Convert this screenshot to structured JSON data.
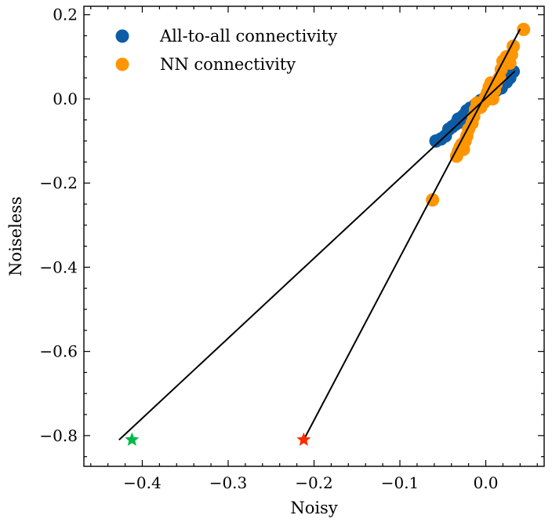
{
  "chart_data": {
    "type": "scatter",
    "title": "",
    "xlabel": "Noisy",
    "ylabel": "Noiseless",
    "xlim": [
      -0.468,
      0.068
    ],
    "ylim": [
      -0.873,
      0.22
    ],
    "xticks": [
      -0.4,
      -0.3,
      -0.2,
      -0.1,
      0.0
    ],
    "xtick_labels": [
      "−0.4",
      "−0.3",
      "−0.2",
      "−0.1",
      "0.0"
    ],
    "yticks": [
      -0.8,
      -0.6,
      -0.4,
      -0.2,
      0.0,
      0.2
    ],
    "ytick_labels": [
      "−0.8",
      "−0.6",
      "−0.4",
      "−0.2",
      "0.0",
      "0.2"
    ],
    "legend_position": "top-left",
    "series": [
      {
        "name": "All-to-all connectivity",
        "color": "#0C5DA5",
        "points": [
          [
            -0.058,
            -0.1
          ],
          [
            -0.052,
            -0.095
          ],
          [
            -0.047,
            -0.088
          ],
          [
            -0.043,
            -0.072
          ],
          [
            -0.039,
            -0.066
          ],
          [
            -0.035,
            -0.06
          ],
          [
            -0.032,
            -0.048
          ],
          [
            -0.03,
            -0.055
          ],
          [
            -0.026,
            -0.04
          ],
          [
            -0.022,
            -0.028
          ],
          [
            -0.018,
            -0.022
          ],
          [
            -0.012,
            -0.014
          ],
          [
            -0.006,
            -0.004
          ],
          [
            0.0,
            0.005
          ],
          [
            0.006,
            0.012
          ],
          [
            0.012,
            0.02
          ],
          [
            0.018,
            0.026
          ],
          [
            0.024,
            0.04
          ],
          [
            0.028,
            0.05
          ],
          [
            0.032,
            0.065
          ]
        ]
      },
      {
        "name": "NN connectivity",
        "color": "#FF9500",
        "points": [
          [
            -0.062,
            -0.24
          ],
          [
            -0.034,
            -0.136
          ],
          [
            -0.032,
            -0.125
          ],
          [
            -0.03,
            -0.115
          ],
          [
            -0.028,
            -0.108
          ],
          [
            -0.026,
            -0.12
          ],
          [
            -0.024,
            -0.1
          ],
          [
            -0.022,
            -0.088
          ],
          [
            -0.02,
            -0.072
          ],
          [
            -0.016,
            -0.058
          ],
          [
            -0.014,
            -0.042
          ],
          [
            -0.012,
            -0.025
          ],
          [
            -0.01,
            -0.01
          ],
          [
            -0.006,
            -0.02
          ],
          [
            -0.002,
            -0.008
          ],
          [
            0.0,
            0.005
          ],
          [
            0.002,
            0.015
          ],
          [
            0.004,
            0.028
          ],
          [
            0.006,
            0.038
          ],
          [
            0.008,
            0.0
          ],
          [
            0.01,
            0.02
          ],
          [
            0.012,
            0.035
          ],
          [
            0.016,
            0.05
          ],
          [
            0.018,
            0.07
          ],
          [
            0.02,
            0.09
          ],
          [
            0.024,
            0.1
          ],
          [
            0.028,
            0.085
          ],
          [
            0.03,
            0.105
          ],
          [
            0.032,
            0.125
          ],
          [
            0.044,
            0.165
          ]
        ]
      }
    ],
    "fit_lines": [
      {
        "name": "all-to-all fit",
        "color": "#000000",
        "from": [
          -0.427,
          -0.81
        ],
        "to": [
          0.034,
          0.066
        ]
      },
      {
        "name": "nn fit",
        "color": "#000000",
        "from": [
          -0.212,
          -0.81
        ],
        "to": [
          0.04,
          0.166
        ]
      }
    ],
    "markers": [
      {
        "name": "green-star",
        "shape": "star",
        "color": "#00B945",
        "x": -0.412,
        "y": -0.81
      },
      {
        "name": "red-star",
        "shape": "star",
        "color": "#FF2C00",
        "x": -0.212,
        "y": -0.81
      }
    ]
  }
}
